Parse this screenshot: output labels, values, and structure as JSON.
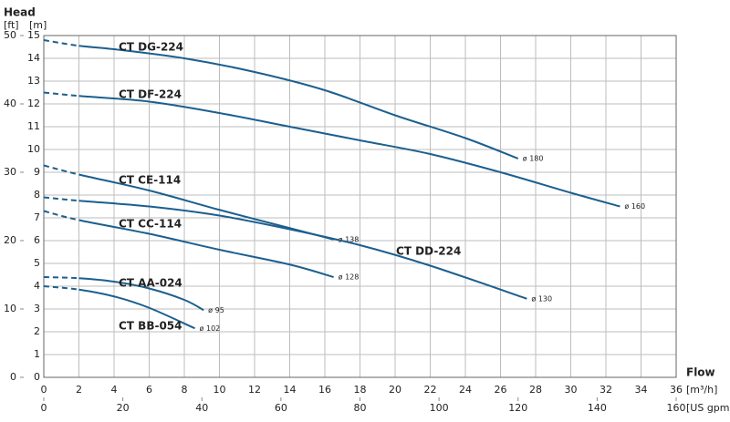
{
  "chart_data": {
    "type": "line",
    "y_title": "Head",
    "y2_unit": "[ft]",
    "y_unit": "[m]",
    "x_title": "Flow",
    "x_unit": "[m³/h]",
    "x2_unit": "[US gpm]",
    "xlim": [
      0,
      36
    ],
    "xticks": [
      0,
      2,
      4,
      6,
      8,
      10,
      12,
      14,
      16,
      18,
      20,
      22,
      24,
      26,
      28,
      30,
      32,
      34,
      36
    ],
    "ylim": [
      0,
      15
    ],
    "yticks": [
      0,
      1,
      2,
      3,
      4,
      5,
      6,
      7,
      8,
      9,
      10,
      11,
      12,
      13,
      14,
      15
    ],
    "y2lim": [
      0,
      50
    ],
    "y2ticks": [
      0,
      10,
      20,
      30,
      40,
      50
    ],
    "x2lim": [
      0,
      160
    ],
    "x2ticks": [
      0,
      20,
      40,
      60,
      80,
      100,
      120,
      140,
      160
    ],
    "grid": true,
    "color": "#1b5f8f",
    "series": [
      {
        "name": "CT DG-224",
        "end_label": "ø 180",
        "x": [
          0,
          2,
          4,
          8,
          12,
          16,
          20,
          24,
          27
        ],
        "values": [
          14.8,
          14.55,
          14.4,
          14.0,
          13.4,
          12.6,
          11.5,
          10.5,
          9.6
        ]
      },
      {
        "name": "CT DF-224",
        "end_label": "ø 160",
        "x": [
          0,
          2,
          6,
          10,
          14,
          18,
          22,
          26,
          30,
          32.8
        ],
        "values": [
          12.5,
          12.35,
          12.1,
          11.6,
          11.0,
          10.4,
          9.8,
          9.0,
          8.1,
          7.5
        ]
      },
      {
        "name": "CT CE-114",
        "end_label": "ø 138",
        "x": [
          0,
          2,
          6,
          10,
          14,
          16.5
        ],
        "values": [
          9.3,
          8.9,
          8.2,
          7.35,
          6.55,
          6.05
        ]
      },
      {
        "name": "CT CC-114",
        "end_label": "ø 128",
        "x": [
          0,
          2,
          6,
          10,
          14,
          16.5
        ],
        "values": [
          7.3,
          6.9,
          6.3,
          5.6,
          4.95,
          4.4
        ]
      },
      {
        "name": "CT AA-024",
        "end_label": "ø 95",
        "x": [
          0,
          2,
          4,
          6,
          8,
          9.1
        ],
        "values": [
          4.4,
          4.35,
          4.2,
          3.9,
          3.4,
          2.95
        ]
      },
      {
        "name": "CT BB-054",
        "end_label": "ø 102",
        "x": [
          0,
          2,
          4,
          6,
          8.6
        ],
        "values": [
          4.0,
          3.85,
          3.55,
          3.05,
          2.15
        ]
      },
      {
        "name": "CT DD-224",
        "end_label": "ø 130",
        "x": [
          0,
          2,
          6,
          10,
          14,
          18,
          22,
          27.5
        ],
        "values": [
          7.9,
          7.75,
          7.5,
          7.1,
          6.5,
          5.8,
          4.9,
          3.45
        ]
      }
    ]
  }
}
